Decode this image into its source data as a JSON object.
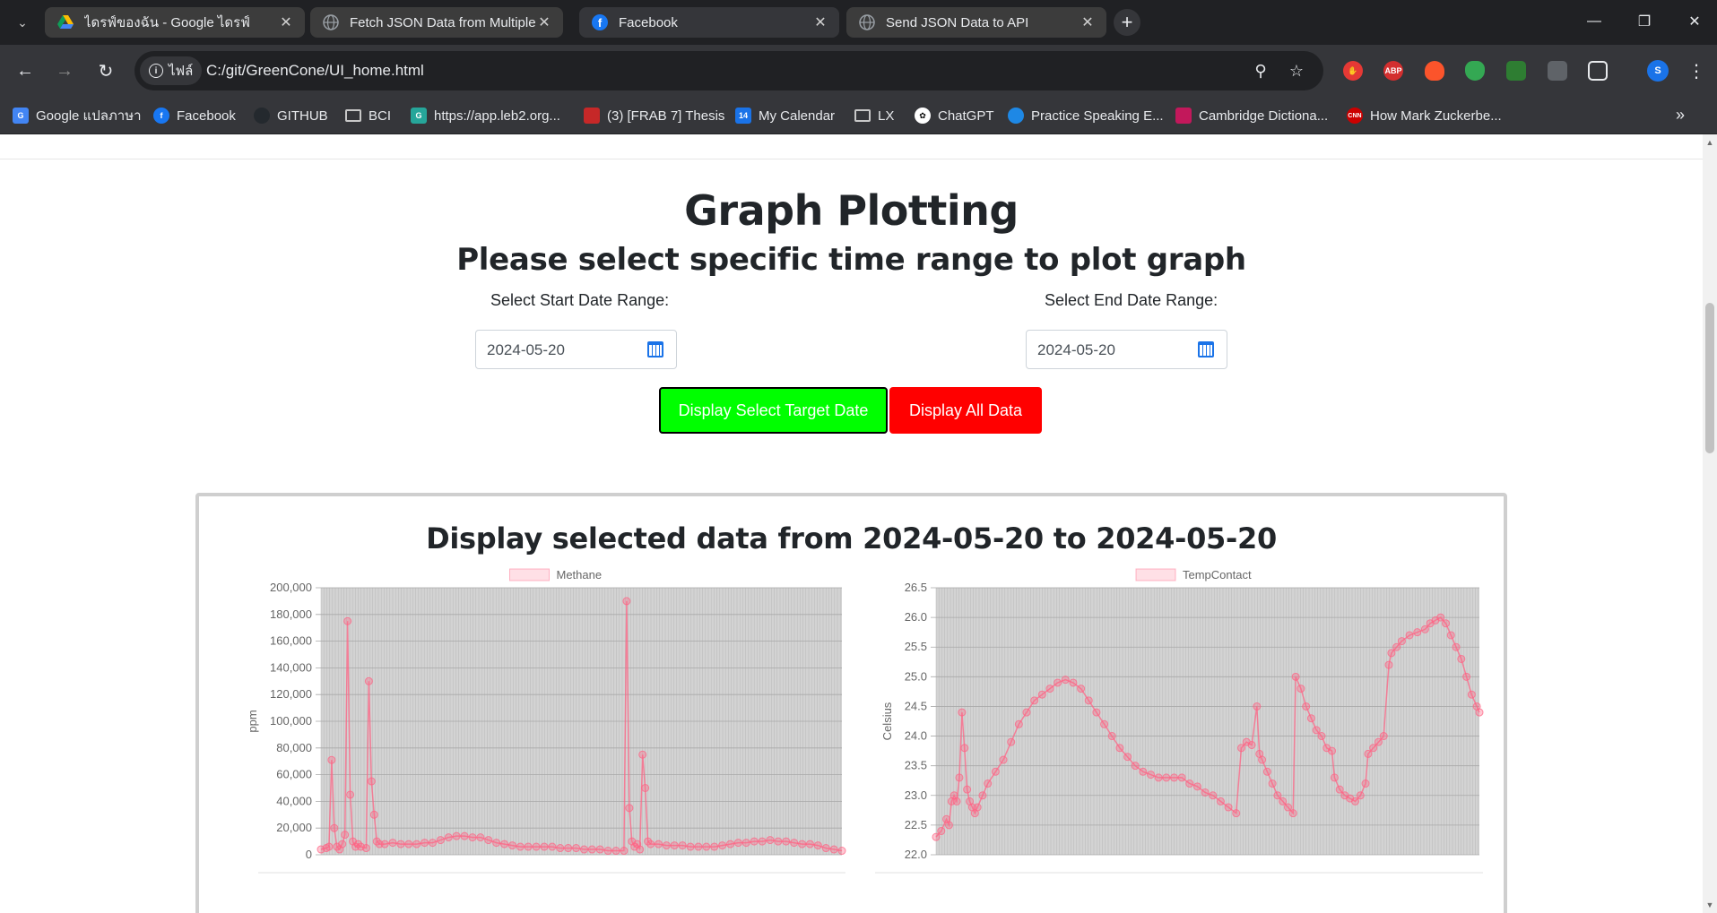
{
  "browser": {
    "tabs": [
      {
        "title": "ไดรฟ์ของฉัน - Google ไดรฟ์",
        "icon": "google-drive-icon",
        "active": false
      },
      {
        "title": "Fetch JSON Data from Multiple",
        "icon": "globe-icon",
        "active": false
      },
      {
        "title": "Facebook",
        "icon": "facebook-icon",
        "active": true
      },
      {
        "title": "Send JSON Data to API",
        "icon": "globe-icon",
        "active": false
      }
    ],
    "site_chip": "ไฟล์",
    "url": "C:/git/GreenCone/UI_home.html",
    "bookmarks": [
      {
        "label": "Google แปลภาษา",
        "icon": "google-translate-icon"
      },
      {
        "label": "Facebook",
        "icon": "facebook-icon"
      },
      {
        "label": "GITHUB",
        "icon": "github-icon"
      },
      {
        "label": "BCI",
        "icon": "folder-icon"
      },
      {
        "label": "https://app.leb2.org...",
        "icon": "leb2-icon"
      },
      {
        "label": "(3) [FRAB 7] Thesis",
        "icon": "bag-icon"
      },
      {
        "label": "My Calendar",
        "icon": "calendar-icon"
      },
      {
        "label": "LX",
        "icon": "folder-icon"
      },
      {
        "label": "ChatGPT",
        "icon": "chatgpt-icon"
      },
      {
        "label": "Practice Speaking E...",
        "icon": "practice-icon"
      },
      {
        "label": "Cambridge Dictiona...",
        "icon": "cambridge-icon"
      },
      {
        "label": "How Mark Zuckerbe...",
        "icon": "cnn-icon"
      }
    ],
    "extensions": [
      "ABP"
    ],
    "profile_initial": "S"
  },
  "page": {
    "title": "Graph Plotting",
    "subtitle": "Please select specific time range to plot graph",
    "start_label": "Select Start Date Range:",
    "end_label": "Select End Date Range:",
    "start_date": "2024-05-20",
    "end_date": "2024-05-20",
    "btn_select": "Display Select Target Date",
    "btn_all": "Display All Data",
    "card_title": "Display selected data from 2024-05-20 to 2024-05-20",
    "colors": {
      "select_button": "#00ff00",
      "all_button": "#ff0000",
      "series": "#ff6384",
      "plot_bg": "#d3d3d3"
    }
  },
  "chart_data": [
    {
      "type": "line",
      "series_name": "Methane",
      "ylabel": "ppm",
      "xlabel": "",
      "ylim": [
        0,
        200000
      ],
      "yticks": [
        0,
        20000,
        40000,
        60000,
        80000,
        100000,
        120000,
        140000,
        160000,
        180000,
        200000
      ],
      "ytick_labels": [
        "0",
        "20,000",
        "40,000",
        "60,000",
        "80,000",
        "100,000",
        "120,000",
        "140,000",
        "160,000",
        "180,000",
        "200,000"
      ],
      "points": [
        [
          0,
          4000
        ],
        [
          2,
          5000
        ],
        [
          3,
          6000
        ],
        [
          4,
          71000
        ],
        [
          5,
          20000
        ],
        [
          6,
          6000
        ],
        [
          7,
          4000
        ],
        [
          8,
          8000
        ],
        [
          9,
          15000
        ],
        [
          10,
          175000
        ],
        [
          11,
          45000
        ],
        [
          12,
          10000
        ],
        [
          13,
          6000
        ],
        [
          14,
          8000
        ],
        [
          15,
          6000
        ],
        [
          17,
          5000
        ],
        [
          18,
          130000
        ],
        [
          19,
          55000
        ],
        [
          20,
          30000
        ],
        [
          21,
          10000
        ],
        [
          22,
          8000
        ],
        [
          24,
          8000
        ],
        [
          27,
          9000
        ],
        [
          30,
          8000
        ],
        [
          33,
          8000
        ],
        [
          36,
          8000
        ],
        [
          39,
          9000
        ],
        [
          42,
          9000
        ],
        [
          45,
          11000
        ],
        [
          48,
          13000
        ],
        [
          51,
          14000
        ],
        [
          54,
          14000
        ],
        [
          57,
          13000
        ],
        [
          60,
          13000
        ],
        [
          63,
          11000
        ],
        [
          66,
          9000
        ],
        [
          69,
          8000
        ],
        [
          72,
          7000
        ],
        [
          75,
          6000
        ],
        [
          78,
          6000
        ],
        [
          81,
          6000
        ],
        [
          84,
          6000
        ],
        [
          87,
          6000
        ],
        [
          90,
          5000
        ],
        [
          93,
          5000
        ],
        [
          96,
          5000
        ],
        [
          99,
          4000
        ],
        [
          102,
          4000
        ],
        [
          105,
          4000
        ],
        [
          108,
          3000
        ],
        [
          111,
          3000
        ],
        [
          114,
          3000
        ],
        [
          115,
          190000
        ],
        [
          116,
          35000
        ],
        [
          117,
          10000
        ],
        [
          118,
          6000
        ],
        [
          119,
          8000
        ],
        [
          120,
          4000
        ],
        [
          121,
          75000
        ],
        [
          122,
          50000
        ],
        [
          123,
          10000
        ],
        [
          124,
          8000
        ],
        [
          127,
          8000
        ],
        [
          130,
          7000
        ],
        [
          133,
          7000
        ],
        [
          136,
          7000
        ],
        [
          139,
          6000
        ],
        [
          142,
          6000
        ],
        [
          145,
          6000
        ],
        [
          148,
          6000
        ],
        [
          151,
          7000
        ],
        [
          154,
          8000
        ],
        [
          157,
          9000
        ],
        [
          160,
          9000
        ],
        [
          163,
          10000
        ],
        [
          166,
          10000
        ],
        [
          169,
          11000
        ],
        [
          172,
          10000
        ],
        [
          175,
          10000
        ],
        [
          178,
          9000
        ],
        [
          181,
          8000
        ],
        [
          184,
          8000
        ],
        [
          187,
          7000
        ],
        [
          190,
          5000
        ],
        [
          193,
          4000
        ],
        [
          196,
          3000
        ]
      ]
    },
    {
      "type": "line",
      "series_name": "TempContact",
      "ylabel": "Celsius",
      "xlabel": "",
      "ylim": [
        22.0,
        26.5
      ],
      "yticks": [
        22.0,
        22.5,
        23.0,
        23.5,
        24.0,
        24.5,
        25.0,
        25.5,
        26.0,
        26.5
      ],
      "ytick_labels": [
        "22.0",
        "22.5",
        "23.0",
        "23.5",
        "24.0",
        "24.5",
        "25.0",
        "25.5",
        "26.0",
        "26.5"
      ],
      "points": [
        [
          0,
          22.3
        ],
        [
          2,
          22.4
        ],
        [
          4,
          22.6
        ],
        [
          5,
          22.5
        ],
        [
          6,
          22.9
        ],
        [
          7,
          23.0
        ],
        [
          8,
          22.9
        ],
        [
          9,
          23.3
        ],
        [
          10,
          24.4
        ],
        [
          11,
          23.8
        ],
        [
          12,
          23.1
        ],
        [
          13,
          22.9
        ],
        [
          14,
          22.8
        ],
        [
          15,
          22.7
        ],
        [
          16,
          22.8
        ],
        [
          18,
          23.0
        ],
        [
          20,
          23.2
        ],
        [
          23,
          23.4
        ],
        [
          26,
          23.6
        ],
        [
          29,
          23.9
        ],
        [
          32,
          24.2
        ],
        [
          35,
          24.4
        ],
        [
          38,
          24.6
        ],
        [
          41,
          24.7
        ],
        [
          44,
          24.8
        ],
        [
          47,
          24.9
        ],
        [
          50,
          24.95
        ],
        [
          53,
          24.9
        ],
        [
          56,
          24.8
        ],
        [
          59,
          24.6
        ],
        [
          62,
          24.4
        ],
        [
          65,
          24.2
        ],
        [
          68,
          24.0
        ],
        [
          71,
          23.8
        ],
        [
          74,
          23.65
        ],
        [
          77,
          23.5
        ],
        [
          80,
          23.4
        ],
        [
          83,
          23.35
        ],
        [
          86,
          23.3
        ],
        [
          89,
          23.3
        ],
        [
          92,
          23.3
        ],
        [
          95,
          23.3
        ],
        [
          98,
          23.2
        ],
        [
          101,
          23.15
        ],
        [
          104,
          23.05
        ],
        [
          107,
          23.0
        ],
        [
          110,
          22.9
        ],
        [
          113,
          22.8
        ],
        [
          116,
          22.7
        ],
        [
          118,
          23.8
        ],
        [
          120,
          23.9
        ],
        [
          122,
          23.85
        ],
        [
          124,
          24.5
        ],
        [
          125,
          23.7
        ],
        [
          126,
          23.6
        ],
        [
          128,
          23.4
        ],
        [
          130,
          23.2
        ],
        [
          132,
          23.0
        ],
        [
          134,
          22.9
        ],
        [
          136,
          22.8
        ],
        [
          138,
          22.7
        ],
        [
          139,
          25.0
        ],
        [
          141,
          24.8
        ],
        [
          143,
          24.5
        ],
        [
          145,
          24.3
        ],
        [
          147,
          24.1
        ],
        [
          149,
          24.0
        ],
        [
          151,
          23.8
        ],
        [
          153,
          23.75
        ],
        [
          154,
          23.3
        ],
        [
          156,
          23.1
        ],
        [
          158,
          23.0
        ],
        [
          160,
          22.95
        ],
        [
          162,
          22.9
        ],
        [
          164,
          23.0
        ],
        [
          166,
          23.2
        ],
        [
          167,
          23.7
        ],
        [
          169,
          23.8
        ],
        [
          171,
          23.9
        ],
        [
          173,
          24.0
        ],
        [
          175,
          25.2
        ],
        [
          176,
          25.4
        ],
        [
          178,
          25.5
        ],
        [
          180,
          25.6
        ],
        [
          183,
          25.7
        ],
        [
          186,
          25.75
        ],
        [
          189,
          25.8
        ],
        [
          191,
          25.9
        ],
        [
          193,
          25.95
        ],
        [
          195,
          26.0
        ],
        [
          197,
          25.9
        ],
        [
          199,
          25.7
        ],
        [
          201,
          25.5
        ],
        [
          203,
          25.3
        ],
        [
          205,
          25.0
        ],
        [
          207,
          24.7
        ],
        [
          209,
          24.5
        ],
        [
          210,
          24.4
        ]
      ]
    }
  ]
}
